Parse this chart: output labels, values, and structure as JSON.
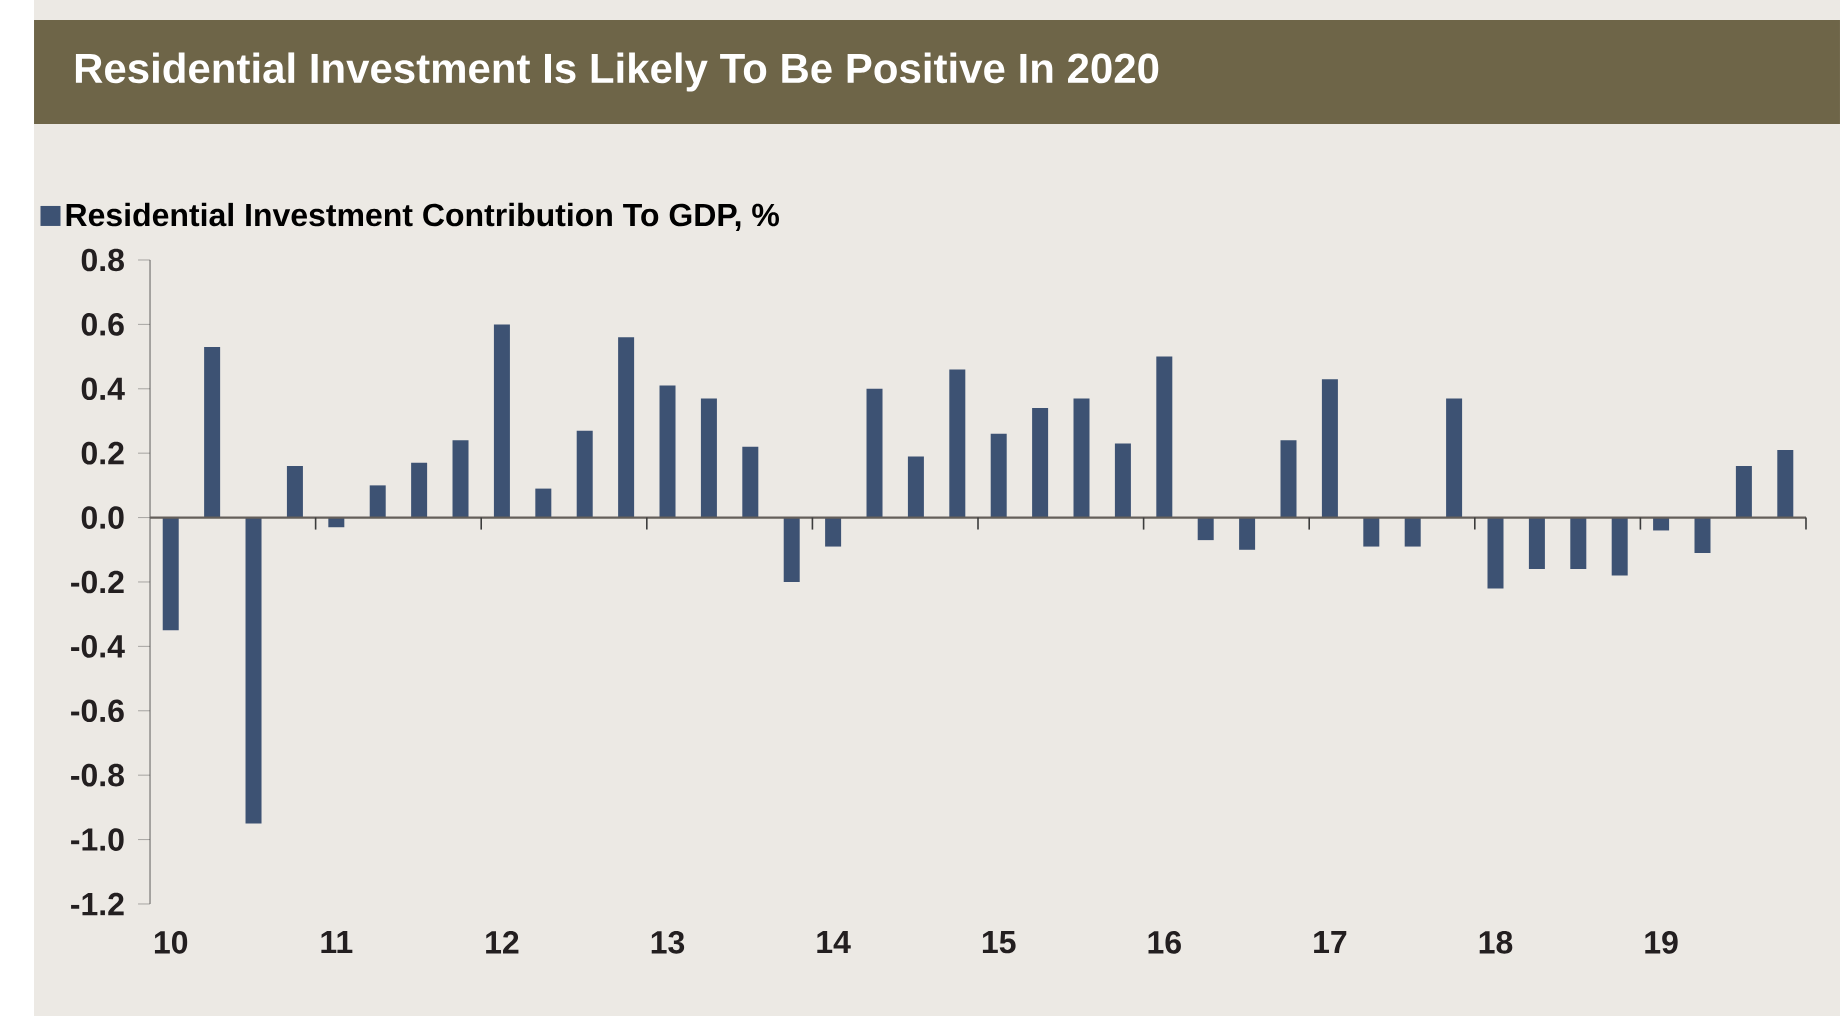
{
  "chart_data": {
    "type": "bar",
    "title": "Residential Investment Is Likely To Be Positive In 2020",
    "categories": [
      "10",
      null,
      null,
      null,
      "11",
      null,
      null,
      null,
      "12",
      null,
      null,
      null,
      "13",
      null,
      null,
      null,
      "14",
      null,
      null,
      null,
      "15",
      null,
      null,
      null,
      "16",
      null,
      null,
      null,
      "17",
      null,
      null,
      null,
      "18",
      null,
      null,
      null,
      "19",
      null,
      null,
      null
    ],
    "series": [
      {
        "name": "Residential Investment Contribution To GDP, %",
        "color": "#3d5273",
        "values": [
          -0.35,
          0.53,
          -0.95,
          0.16,
          -0.03,
          0.1,
          0.17,
          0.24,
          0.6,
          0.09,
          0.27,
          0.56,
          0.41,
          0.37,
          0.22,
          -0.2,
          -0.09,
          0.4,
          0.19,
          0.46,
          0.26,
          0.34,
          0.37,
          0.23,
          0.5,
          -0.07,
          -0.1,
          0.24,
          0.43,
          -0.09,
          -0.09,
          0.37,
          -0.22,
          -0.16,
          -0.16,
          -0.18,
          -0.04,
          -0.11,
          0.16,
          0.21
        ]
      }
    ],
    "ylim": [
      -1.2,
      0.8
    ],
    "yticks": [
      {
        "value": -1.2,
        "label": "-1.2"
      },
      {
        "value": -1.0,
        "label": "-1.0"
      },
      {
        "value": -0.8,
        "label": "-0.8"
      },
      {
        "value": -0.6,
        "label": "-0.6"
      },
      {
        "value": -0.4,
        "label": "-0.4"
      },
      {
        "value": -0.2,
        "label": "-0.2"
      },
      {
        "value": 0,
        "label": "0.0"
      },
      {
        "value": 0.2,
        "label": "0.2"
      },
      {
        "value": 0.4,
        "label": "0.4"
      },
      {
        "value": 0.6,
        "label": "0.6"
      },
      {
        "value": 0.8,
        "label": "0.8"
      }
    ],
    "legend": "top left"
  }
}
